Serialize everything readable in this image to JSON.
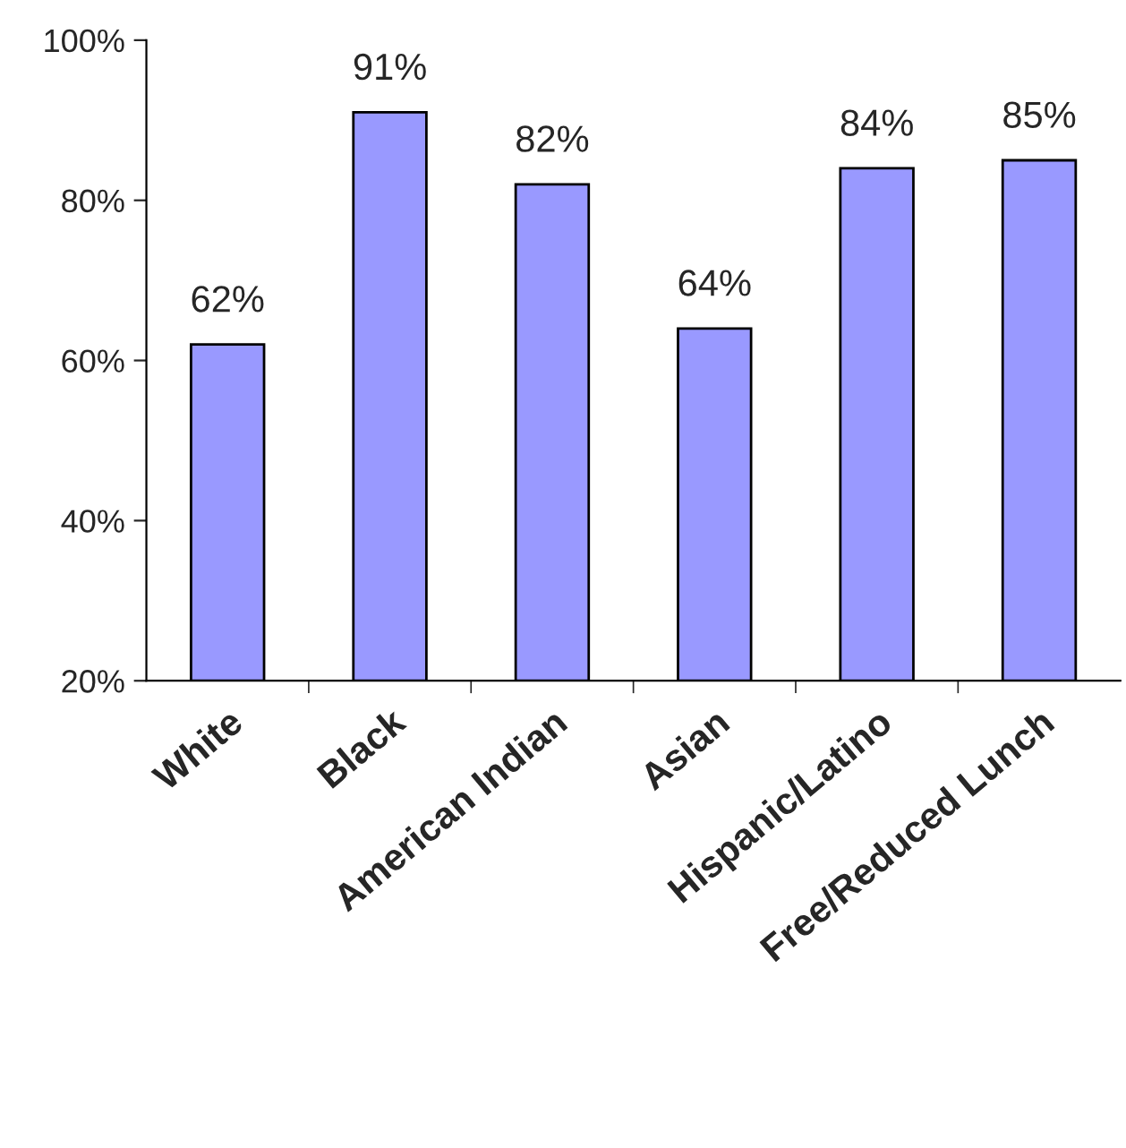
{
  "chart_data": {
    "type": "bar",
    "categories": [
      "White",
      "Black",
      "American Indian",
      "Asian",
      "Hispanic/Latino",
      "Free/Reduced Lunch"
    ],
    "values": [
      62,
      91,
      82,
      64,
      84,
      85
    ],
    "value_labels": [
      "62%",
      "91%",
      "82%",
      "64%",
      "84%",
      "85%"
    ],
    "color": "#9999ff",
    "ylim": [
      20,
      100
    ],
    "yticks": [
      {
        "value": 20,
        "label": "20%"
      },
      {
        "value": 40,
        "label": "40%"
      },
      {
        "value": 60,
        "label": "60%"
      },
      {
        "value": 80,
        "label": "80%"
      },
      {
        "value": 100,
        "label": "100%"
      }
    ],
    "grid": false,
    "legend": false
  }
}
